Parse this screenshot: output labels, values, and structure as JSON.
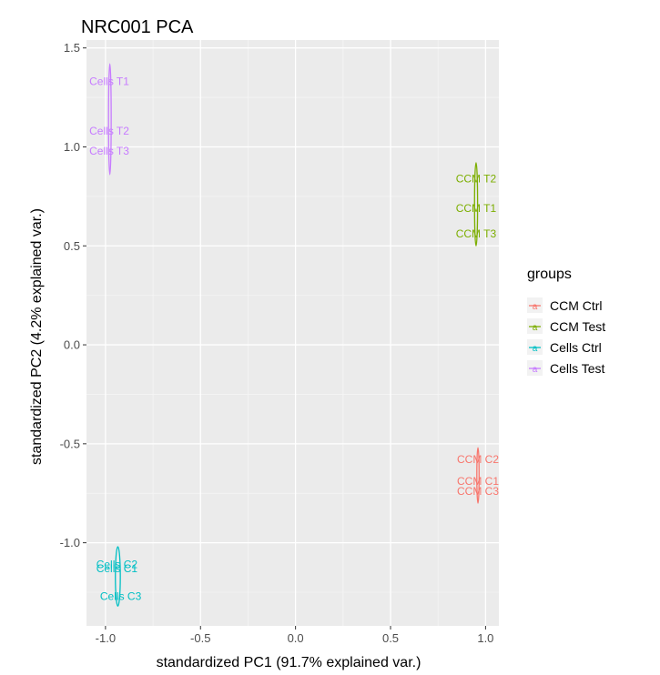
{
  "chart_data": {
    "type": "scatter",
    "title": "NRC001 PCA",
    "xlabel": "standardized PC1 (91.7% explained var.)",
    "ylabel": "standardized PC2 (4.2% explained var.)",
    "xlim": [
      -1.1,
      1.07
    ],
    "ylim": [
      -1.42,
      1.54
    ],
    "xticks": [
      -1.0,
      -0.5,
      0.0,
      0.5,
      1.0
    ],
    "xtick_labels": [
      "-1.0",
      "-0.5",
      "0.0",
      "0.5",
      "1.0"
    ],
    "yticks": [
      -1.0,
      -0.5,
      0.0,
      0.5,
      1.0,
      1.5
    ],
    "ytick_labels": [
      "-1.0",
      "-0.5",
      "0.0",
      "0.5",
      "1.0",
      "1.5"
    ],
    "grid": true,
    "legend_title": "groups",
    "legend_position": "right",
    "series": [
      {
        "name": "CCM Ctrl",
        "color": "#F8766D",
        "points": [
          {
            "label": "CCM C2",
            "x": 0.96,
            "y": -0.58
          },
          {
            "label": "CCM C1",
            "x": 0.96,
            "y": -0.69
          },
          {
            "label": "CCM C3",
            "x": 0.96,
            "y": -0.74
          }
        ],
        "ellipse": {
          "cx": 0.96,
          "cy": -0.66,
          "rx": 0.006,
          "ry": 0.14
        }
      },
      {
        "name": "CCM Test",
        "color": "#7CAE00",
        "points": [
          {
            "label": "CCM T2",
            "x": 0.95,
            "y": 0.84
          },
          {
            "label": "CCM T1",
            "x": 0.95,
            "y": 0.69
          },
          {
            "label": "CCM T3",
            "x": 0.95,
            "y": 0.56
          }
        ],
        "ellipse": {
          "cx": 0.95,
          "cy": 0.71,
          "rx": 0.008,
          "ry": 0.21
        }
      },
      {
        "name": "Cells Ctrl",
        "color": "#00BFC4",
        "points": [
          {
            "label": "Cells C2",
            "x": -0.94,
            "y": -1.11
          },
          {
            "label": "Cells C1",
            "x": -0.94,
            "y": -1.13
          },
          {
            "label": "Cells C3",
            "x": -0.92,
            "y": -1.27
          }
        ],
        "ellipse": {
          "cx": -0.935,
          "cy": -1.17,
          "rx": 0.013,
          "ry": 0.15
        }
      },
      {
        "name": "Cells Test",
        "color": "#C77CFF",
        "points": [
          {
            "label": "Cells T1",
            "x": -0.98,
            "y": 1.33
          },
          {
            "label": "Cells T2",
            "x": -0.98,
            "y": 1.08
          },
          {
            "label": "Cells T3",
            "x": -0.98,
            "y": 0.98
          }
        ],
        "ellipse": {
          "cx": -0.977,
          "cy": 1.14,
          "rx": 0.007,
          "ry": 0.28
        }
      }
    ]
  }
}
